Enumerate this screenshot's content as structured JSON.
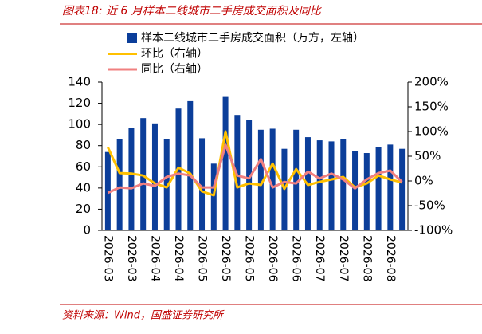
{
  "chart_data": {
    "type": "bar-line",
    "title": "图表18:  近 6 月样本二线城市二手房成交面积及同比",
    "source": "资料来源：Wind，国盛证券研究所",
    "categories": [
      "2026-03",
      null,
      "2026-03",
      null,
      "2026-04",
      null,
      "2026-04",
      null,
      "2026-05",
      null,
      "2026-05",
      null,
      "2026-05",
      null,
      "2026-06",
      null,
      "2026-06",
      null,
      "2026-07",
      null,
      "2026-07",
      null,
      "2026-08",
      null,
      "2026-08",
      null
    ],
    "series": [
      {
        "name": "样本二线城市二手房成交面积（万方，左轴）",
        "type": "bar",
        "color": "#0b3e9a",
        "values": [
          74,
          86,
          97,
          106,
          101,
          86,
          115,
          122,
          87,
          63,
          126,
          109,
          104,
          95,
          96,
          77,
          95,
          88,
          85,
          84,
          86,
          75,
          73,
          79,
          81,
          77
        ]
      },
      {
        "name": "环比（右轴）",
        "type": "line",
        "axis": "y2",
        "color": "#ffc000",
        "values": [
          68,
          16,
          15,
          11,
          -5,
          -13,
          27,
          15,
          -21,
          -29,
          100,
          -13,
          -5,
          -8,
          35,
          -16,
          24,
          -8,
          -2,
          3,
          8,
          -13,
          -5,
          11,
          3,
          -3
        ]
      },
      {
        "name": "同比（右轴）",
        "type": "line",
        "axis": "y2",
        "color": "#f08080",
        "values": [
          -24,
          -13,
          -15,
          -5,
          -10,
          8,
          15,
          11,
          -13,
          -13,
          73,
          11,
          5,
          44,
          -13,
          -2,
          -5,
          19,
          5,
          15,
          3,
          -15,
          3,
          16,
          21,
          -2
        ]
      }
    ],
    "ylim": [
      0,
      140
    ],
    "yticks": [
      0,
      20,
      40,
      60,
      80,
      100,
      120,
      140
    ],
    "y2lim": [
      -100,
      200
    ],
    "y2ticks": [
      {
        "value": -100,
        "label": "-100%"
      },
      {
        "value": -50,
        "label": "-50%"
      },
      {
        "value": 0,
        "label": "0%"
      },
      {
        "value": 50,
        "label": "50%"
      },
      {
        "value": 100,
        "label": "100%"
      },
      {
        "value": 150,
        "label": "150%"
      },
      {
        "value": 200,
        "label": "200%"
      }
    ]
  }
}
